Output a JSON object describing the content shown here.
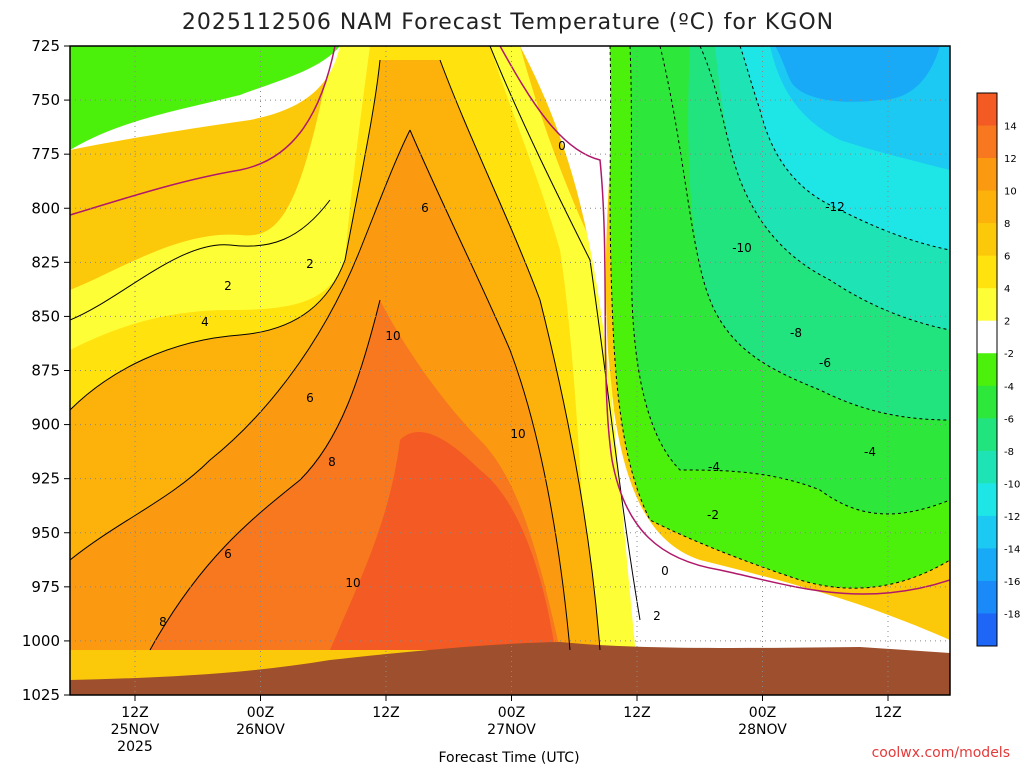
{
  "chart_data": {
    "type": "heatmap",
    "title": "2025112506 NAM Forecast Temperature (ºC) for KGON",
    "xlabel": "Forecast Time (UTC)",
    "ylabel": "",
    "y_ticks": [
      "725",
      "750",
      "775",
      "800",
      "825",
      "850",
      "875",
      "900",
      "925",
      "950",
      "975",
      "1000",
      "1025"
    ],
    "x_ticks": [
      {
        "hour": "12Z",
        "date": "25NOV",
        "year": "2025"
      },
      {
        "hour": "00Z",
        "date": "26NOV",
        "year": ""
      },
      {
        "hour": "12Z",
        "date": "",
        "year": ""
      },
      {
        "hour": "00Z",
        "date": "27NOV",
        "year": ""
      },
      {
        "hour": "12Z",
        "date": "",
        "year": ""
      },
      {
        "hour": "00Z",
        "date": "28NOV",
        "year": ""
      },
      {
        "hour": "12Z",
        "date": "",
        "year": ""
      }
    ],
    "colorbar_labels": [
      "14",
      "12",
      "10",
      "8",
      "6",
      "4",
      "2",
      "-2",
      "-4",
      "-6",
      "-8",
      "-10",
      "-12",
      "-14",
      "-16",
      "-18"
    ],
    "colorbar_colors": [
      "#f45a23",
      "#f7781f",
      "#fb9a11",
      "#fdb20b",
      "#fcc90a",
      "#ffe20e",
      "#fefe37",
      "#ffffff",
      "#4cf10b",
      "#2de83a",
      "#22e47e",
      "#1ee3b4",
      "#1ee6e6",
      "#1bc9f3",
      "#18aaf7",
      "#1a8af8",
      "#1e66f6"
    ],
    "contour_labels": [
      "0",
      "2",
      "2",
      "6",
      "4",
      "10",
      "6",
      "8",
      "10",
      "6",
      "8",
      "10",
      "-12",
      "-10",
      "-8",
      "-6",
      "-4",
      "-4",
      "-2",
      "0",
      "2"
    ],
    "credit": "coolwx.com/models"
  }
}
